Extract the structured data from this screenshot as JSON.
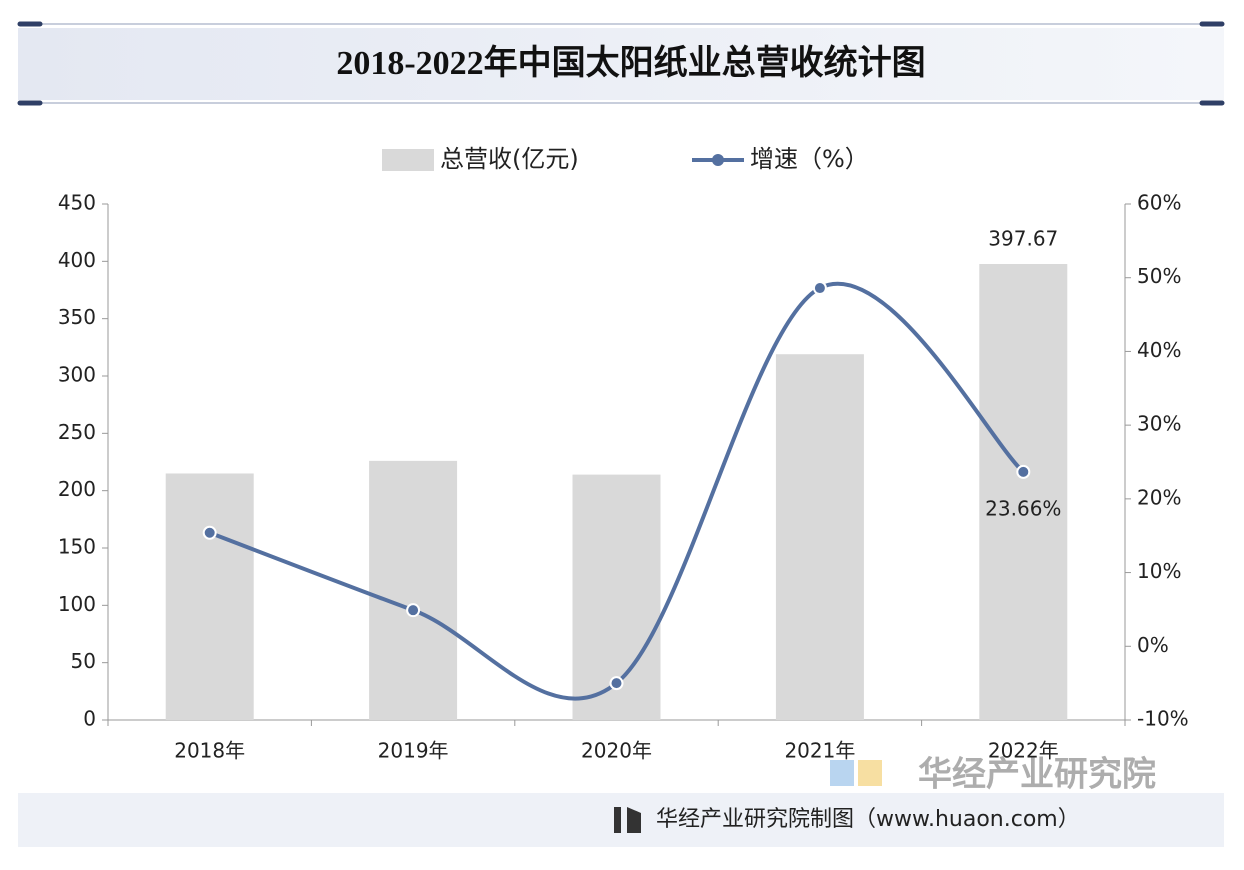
{
  "chart_data": {
    "type": "combo",
    "title": "2018-2022年中国太阳纸业总营收统计图",
    "categories": [
      "2018年",
      "2019年",
      "2020年",
      "2021年",
      "2022年"
    ],
    "series": [
      {
        "name": "总营收(亿元)",
        "type": "bar",
        "color": "#d9d9d9",
        "values": [
          215,
          226,
          214,
          319,
          397.67
        ],
        "value_labels": [
          null,
          null,
          null,
          null,
          "397.67"
        ]
      },
      {
        "name": "增速（%）",
        "type": "line",
        "axis": "y2",
        "color": "#5470a0",
        "values": [
          15.4,
          4.9,
          -5.0,
          48.6,
          23.66
        ],
        "value_labels": [
          null,
          null,
          null,
          null,
          "23.66%"
        ]
      }
    ],
    "ylim": [
      0,
      450
    ],
    "yticks": [
      0,
      50,
      100,
      150,
      200,
      250,
      300,
      350,
      400,
      450
    ],
    "y2lim": [
      -10,
      60
    ],
    "y2ticks": [
      {
        "value": -10,
        "label": "-10%"
      },
      {
        "value": 0,
        "label": "0%"
      },
      {
        "value": 10,
        "label": "10%"
      },
      {
        "value": 20,
        "label": "20%"
      },
      {
        "value": 30,
        "label": "30%"
      },
      {
        "value": 40,
        "label": "40%"
      },
      {
        "value": 50,
        "label": "50%"
      },
      {
        "value": 60,
        "label": "60%"
      }
    ],
    "legend": "top",
    "source": "华经产业研究院制图（www.huaon.com）",
    "watermark": "华经产业研究院"
  }
}
